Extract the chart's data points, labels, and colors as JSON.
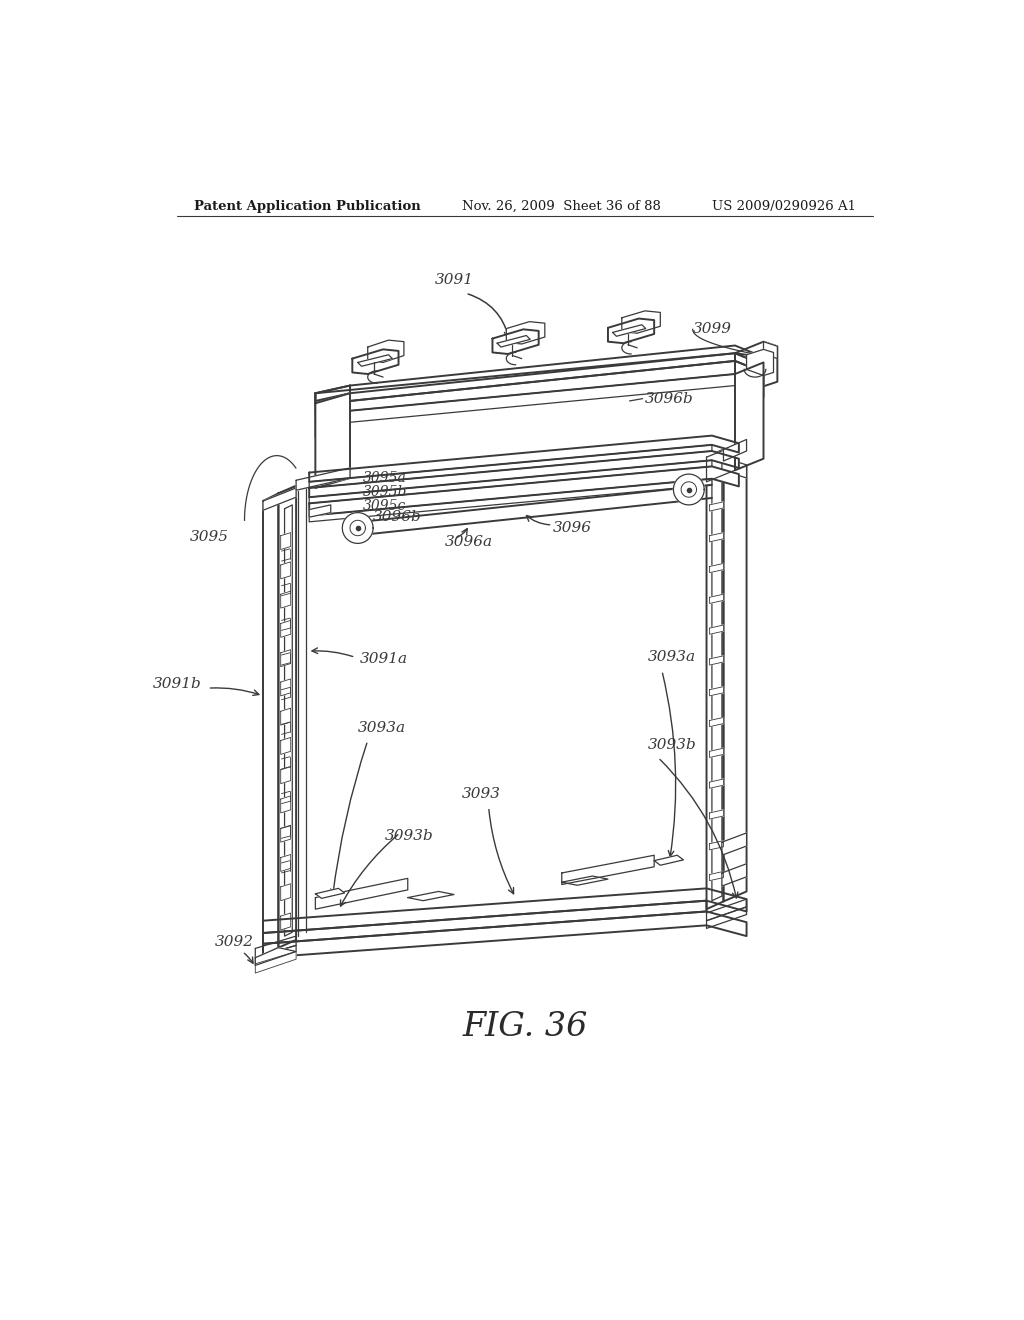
{
  "bg_color": "#ffffff",
  "header_left": "Patent Application Publication",
  "header_mid": "Nov. 26, 2009  Sheet 36 of 88",
  "header_right": "US 2009/0290926 A1",
  "figure_label": "FIG. 36",
  "line_color": "#3a3a3a",
  "label_color": "#3a3a3a",
  "lw_main": 1.4,
  "lw_thin": 0.9,
  "lw_hair": 0.6
}
